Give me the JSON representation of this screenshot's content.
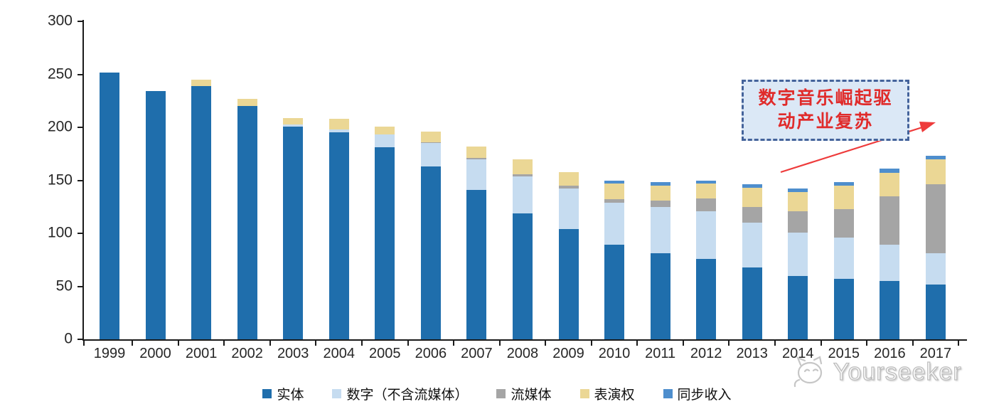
{
  "chart_data": {
    "type": "bar",
    "stacked": true,
    "title": "",
    "xlabel": "",
    "ylabel": "",
    "categories": [
      "1999",
      "2000",
      "2001",
      "2002",
      "2003",
      "2004",
      "2005",
      "2006",
      "2007",
      "2008",
      "2009",
      "2010",
      "2011",
      "2012",
      "2013",
      "2014",
      "2015",
      "2016",
      "2017"
    ],
    "series": [
      {
        "name": "实体",
        "color": "#1F6EAC",
        "values": [
          252,
          234,
          239,
          220,
          201,
          195,
          181,
          163,
          141,
          119,
          104,
          89,
          81,
          76,
          68,
          60,
          57,
          55,
          52
        ]
      },
      {
        "name": "数字（不含流媒体）",
        "color": "#C6DCF0",
        "values": [
          0,
          0,
          0,
          0,
          2,
          3,
          12,
          22,
          29,
          35,
          38,
          40,
          44,
          45,
          42,
          41,
          39,
          34,
          29
        ]
      },
      {
        "name": "流媒体",
        "color": "#A5A5A5",
        "values": [
          0,
          0,
          0,
          0,
          0,
          0,
          0,
          1,
          1,
          2,
          3,
          3,
          6,
          12,
          15,
          20,
          27,
          46,
          65
        ]
      },
      {
        "name": "表演权",
        "color": "#EBD795",
        "values": [
          0,
          0,
          6,
          7,
          6,
          10,
          8,
          10,
          11,
          14,
          13,
          15,
          14,
          14,
          18,
          18,
          22,
          22,
          24
        ]
      },
      {
        "name": "同步收入",
        "color": "#4E8ECD",
        "values": [
          0,
          0,
          0,
          0,
          0,
          0,
          0,
          0,
          0,
          0,
          0,
          3,
          3,
          3,
          3,
          3,
          3,
          4,
          3
        ]
      }
    ],
    "totals": [
      252,
      234,
      245,
      227,
      209,
      208,
      201,
      196,
      182,
      170,
      158,
      150,
      148,
      150,
      146,
      142,
      148,
      161,
      173
    ],
    "ylim": [
      0,
      300
    ],
    "yticks": [
      0,
      50,
      100,
      150,
      200,
      250,
      300
    ],
    "grid": false,
    "legend_position": "bottom",
    "annotation": {
      "line1": "数字音乐崛起驱",
      "line2": "动产业复苏",
      "text_color": "#E02B2B",
      "box_border_color": "#44639B",
      "box_fill_color": "#DBE8F6",
      "arrow_color": "#EE3B3B"
    }
  },
  "watermark": {
    "text": "Yourseeker"
  }
}
